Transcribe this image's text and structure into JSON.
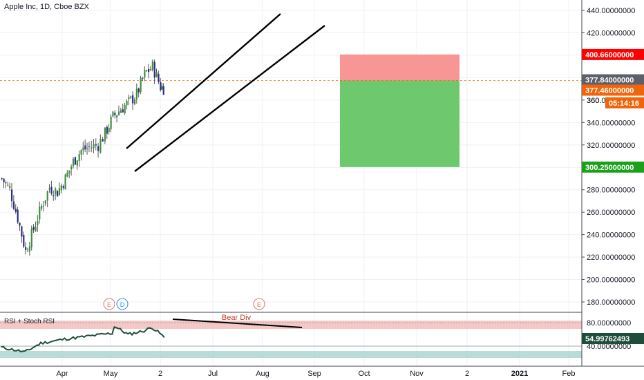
{
  "header": {
    "symbol_title": "Apple Inc, 1D, Cboe BZX"
  },
  "indicator": {
    "title": "RSI + Stoch RSI",
    "annotation": "Bear Div",
    "rsi_value_label": "54.99762493",
    "axis_ticks": [
      "80.00000000",
      "40.00000000"
    ]
  },
  "price_axis": {
    "ticks": [
      "440.00000000",
      "420.00000000",
      "400.00000000",
      "380.00000000",
      "360.00000000",
      "340.00000000",
      "320.00000000",
      "300.00000000",
      "280.00000000",
      "260.00000000",
      "240.00000000",
      "220.00000000",
      "200.00000000",
      "180.00000000"
    ],
    "labels": {
      "stop": "400.66000000",
      "crosshair": "377.84000000",
      "last_price": "377.46000000",
      "countdown": "05:14:16",
      "partial_360": "360.",
      "target": "300.25000000"
    }
  },
  "time_axis": {
    "labels": [
      "Apr",
      "May",
      "2",
      "Jul",
      "Aug",
      "Sep",
      "Oct",
      "Nov",
      "2",
      "2021",
      "Feb"
    ]
  },
  "event_markers": [
    "E",
    "D",
    "E"
  ],
  "colors": {
    "stop_zone": "#f78b8b",
    "target_zone": "#66c666",
    "stop_label": "#ff0000",
    "target_label": "#1ba01b",
    "crosshair_label": "#5d606b",
    "last_price_label": "#f0640a",
    "rsi_line": "#1e4d3b",
    "up_candle": "#3d8f3d",
    "down_candle": "#2a2e82"
  },
  "chart_data": {
    "type": "candlestick",
    "title": "Apple Inc, 1D, Cboe BZX",
    "ylim": [
      180,
      440
    ],
    "position_tool": {
      "entry": 377.46,
      "stop": 400.66,
      "target": 300.25
    },
    "price_path": [
      [
        "2020-03-02",
        290
      ],
      [
        "2020-03-09",
        280
      ],
      [
        "2020-03-16",
        255
      ],
      [
        "2020-03-23",
        225
      ],
      [
        "2020-03-30",
        245
      ],
      [
        "2020-04-06",
        265
      ],
      [
        "2020-04-13",
        282
      ],
      [
        "2020-04-20",
        278
      ],
      [
        "2020-04-27",
        290
      ],
      [
        "2020-05-04",
        305
      ],
      [
        "2020-05-11",
        315
      ],
      [
        "2020-05-18",
        318
      ],
      [
        "2020-05-26",
        320
      ],
      [
        "2020-06-01",
        330
      ],
      [
        "2020-06-08",
        345
      ],
      [
        "2020-06-15",
        352
      ],
      [
        "2020-06-22",
        358
      ],
      [
        "2020-06-29",
        365
      ],
      [
        "2020-07-06",
        383
      ],
      [
        "2020-07-13",
        390
      ],
      [
        "2020-07-20",
        372
      ],
      [
        "2020-07-24",
        370
      ]
    ],
    "rsi_series": [
      [
        "2020-03-02",
        38
      ],
      [
        "2020-03-23",
        30
      ],
      [
        "2020-04-06",
        45
      ],
      [
        "2020-04-27",
        52
      ],
      [
        "2020-05-18",
        57
      ],
      [
        "2020-06-08",
        62
      ],
      [
        "2020-06-10",
        74
      ],
      [
        "2020-06-22",
        60
      ],
      [
        "2020-07-06",
        66
      ],
      [
        "2020-07-13",
        72
      ],
      [
        "2020-07-20",
        62
      ],
      [
        "2020-07-24",
        55
      ]
    ]
  }
}
